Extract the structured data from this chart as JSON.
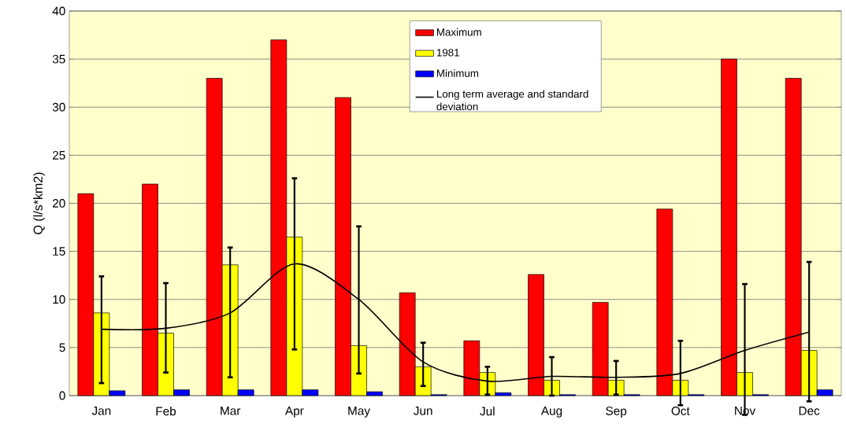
{
  "chart_data": {
    "type": "bar",
    "ylabel": "Q (l/s*km2)",
    "categories": [
      "Jan",
      "Feb",
      "Mar",
      "Apr",
      "May",
      "Jun",
      "Jul",
      "Aug",
      "Sep",
      "Oct",
      "Nov",
      "Dec"
    ],
    "series": [
      {
        "name": "Maximum",
        "color": "#ff0000",
        "values": [
          21,
          22,
          33,
          37,
          31,
          10.7,
          5.7,
          12.6,
          9.7,
          19.4,
          35,
          33
        ]
      },
      {
        "name": "1981",
        "color": "#ffff00",
        "values": [
          8.6,
          6.5,
          13.6,
          16.5,
          5.2,
          3.0,
          2.4,
          1.6,
          1.6,
          1.6,
          2.4,
          4.7
        ]
      },
      {
        "name": "Minimum",
        "color": "#0000ff",
        "values": [
          0.5,
          0.6,
          0.6,
          0.6,
          0.4,
          0.1,
          0.3,
          0.1,
          0.1,
          0.1,
          0.1,
          0.6
        ]
      },
      {
        "name": "Long term average and standard deviation",
        "type": "line",
        "color": "#000000",
        "values": [
          6.9,
          7.0,
          8.6,
          13.7,
          10.0,
          3.5,
          1.5,
          2.0,
          1.9,
          2.3,
          4.7,
          6.6
        ],
        "errors": [
          [
            1.3,
            12.4
          ],
          [
            2.4,
            11.7
          ],
          [
            1.9,
            15.4
          ],
          [
            4.8,
            22.6
          ],
          [
            2.3,
            17.6
          ],
          [
            1.0,
            5.5
          ],
          [
            0.1,
            3.0
          ],
          [
            0.0,
            4.0
          ],
          [
            0.1,
            3.6
          ],
          [
            -1.0,
            5.7
          ],
          [
            -2.0,
            11.6
          ],
          [
            -0.6,
            13.9
          ]
        ]
      }
    ],
    "ylim": [
      0,
      40
    ],
    "yticks": [
      0,
      5,
      10,
      15,
      20,
      25,
      30,
      35,
      40
    ],
    "grid": "y",
    "legend": "top"
  }
}
